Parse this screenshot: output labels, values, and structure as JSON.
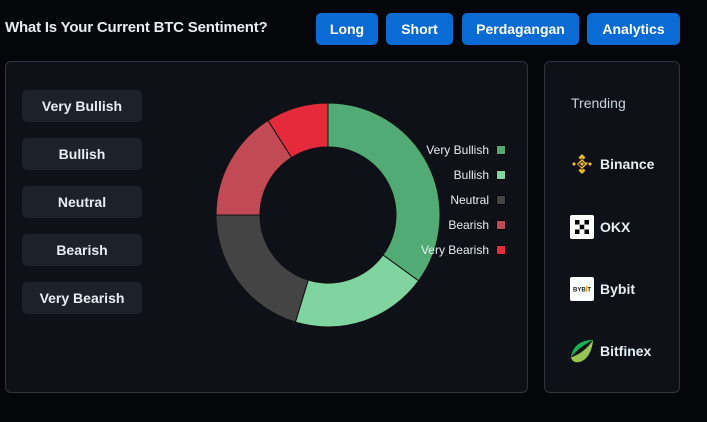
{
  "header": {
    "title": "What Is Your Current BTC Sentiment?",
    "nav_buttons": [
      {
        "label": "Long"
      },
      {
        "label": "Short"
      },
      {
        "label": "Perdagangan"
      },
      {
        "label": "Analytics"
      }
    ],
    "accent_color": "#0b6bd4"
  },
  "sentiment_buttons": [
    {
      "label": "Very Bullish"
    },
    {
      "label": "Bullish"
    },
    {
      "label": "Neutral"
    },
    {
      "label": "Bearish"
    },
    {
      "label": "Very Bearish"
    }
  ],
  "chart_data": {
    "type": "pie",
    "subtype": "donut",
    "categories": [
      "Very Bullish",
      "Bullish",
      "Neutral",
      "Bearish",
      "Very Bearish"
    ],
    "values": [
      35,
      19.7,
      20.3,
      16,
      9
    ],
    "colors": [
      "#52ab74",
      "#7fd49f",
      "#444444",
      "#c24a56",
      "#e52a3b"
    ],
    "legend_position": "right",
    "title": ""
  },
  "trending": {
    "title": "Trending",
    "exchanges": [
      {
        "name": "Binance",
        "icon": "binance-logo-icon"
      },
      {
        "name": "OKX",
        "icon": "okx-logo-icon"
      },
      {
        "name": "Bybit",
        "icon": "bybit-logo-icon",
        "logo_text": "BYBIT"
      },
      {
        "name": "Bitfinex",
        "icon": "bitfinex-logo-icon"
      }
    ]
  }
}
